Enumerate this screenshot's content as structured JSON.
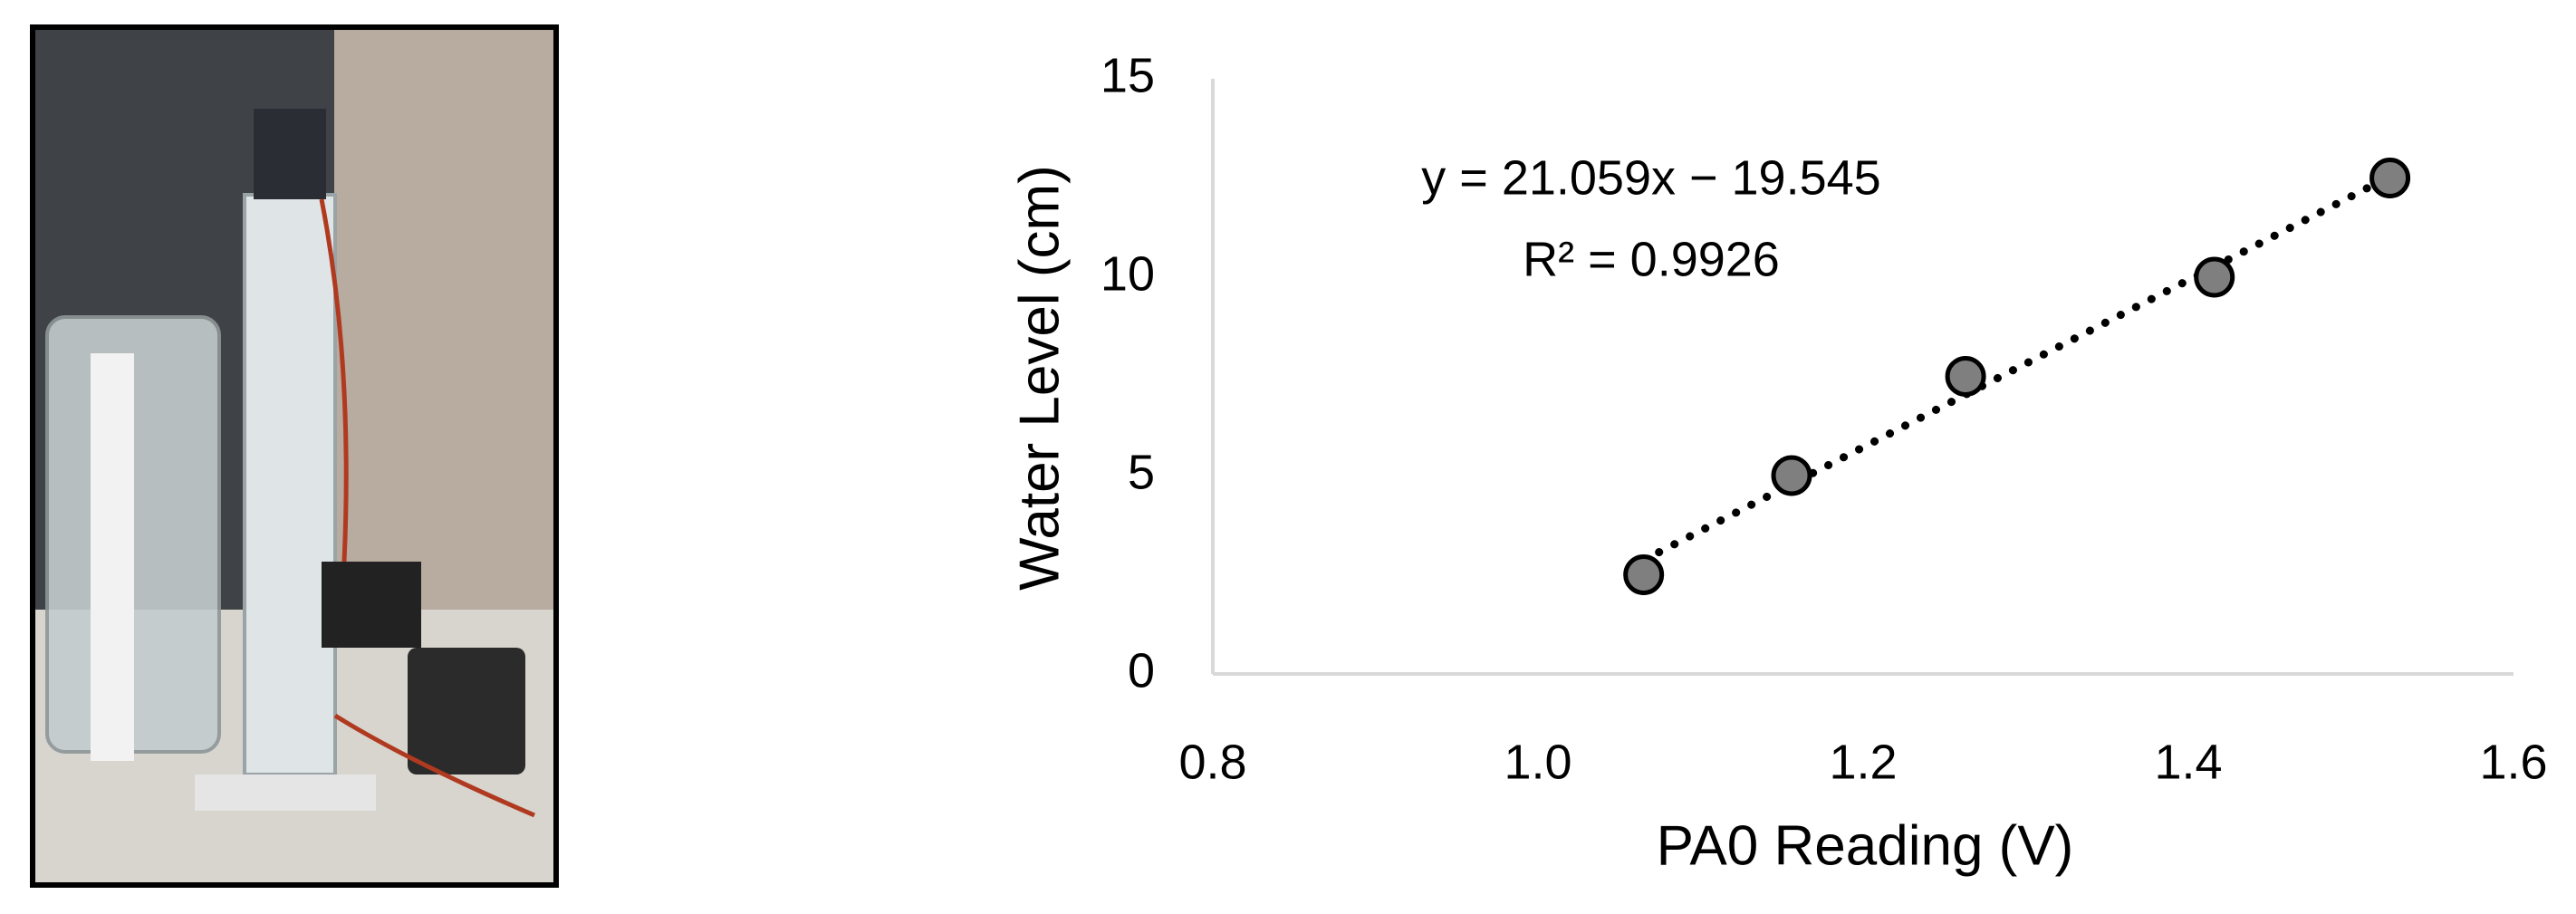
{
  "chart_data": {
    "type": "scatter",
    "xlabel": "PA0 Reading (V)",
    "ylabel": "Water Level (cm)",
    "annotations": [
      "y = 21.059x − 19.545",
      "R² = 0.9926"
    ],
    "x": [
      1.065,
      1.156,
      1.263,
      1.416,
      1.524
    ],
    "values": [
      2.5,
      5,
      7.5,
      10,
      12.5
    ],
    "color": "#7f7f7f",
    "xlim": [
      0.8,
      1.6
    ],
    "xticks": [
      0.8,
      {
        "value": 1,
        "label": "1.0"
      },
      1.2,
      1.4,
      1.6
    ],
    "ylim": [
      0,
      15
    ],
    "yticks": [
      0,
      5,
      10,
      15
    ],
    "grid": false,
    "trendline": true
  }
}
